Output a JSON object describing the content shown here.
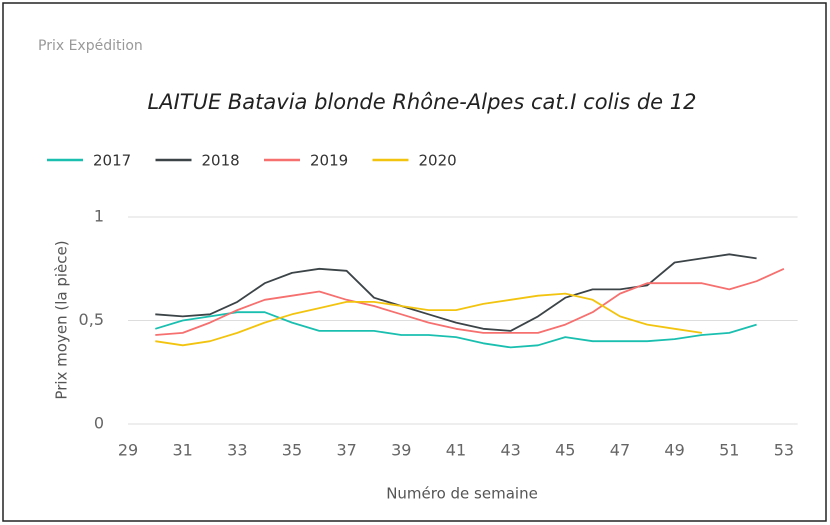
{
  "card_title": "Prix Expédition",
  "chart_data": {
    "type": "line",
    "title": "LAITUE Batavia blonde Rhône-Alpes cat.I colis de 12",
    "x_label": "Numéro de semaine",
    "y_label": "Prix moyen  (la pièce)",
    "x": [
      30,
      31,
      32,
      33,
      34,
      35,
      36,
      37,
      38,
      39,
      40,
      41,
      42,
      43,
      44,
      45,
      46,
      47,
      48,
      49,
      50,
      51,
      52,
      53
    ],
    "series": [
      {
        "name": "2017",
        "color": "#1abfb0",
        "values": [
          0.46,
          0.5,
          0.52,
          0.54,
          0.54,
          0.49,
          0.45,
          0.45,
          0.45,
          0.43,
          0.43,
          0.42,
          0.39,
          0.37,
          0.38,
          0.42,
          0.4,
          0.4,
          0.4,
          0.41,
          0.43,
          0.44,
          0.48,
          null
        ]
      },
      {
        "name": "2018",
        "color": "#3c4448",
        "values": [
          0.53,
          0.52,
          0.53,
          0.59,
          0.68,
          0.73,
          0.75,
          0.74,
          0.61,
          0.57,
          0.53,
          0.49,
          0.46,
          0.45,
          0.52,
          0.61,
          0.65,
          0.65,
          0.67,
          0.78,
          0.8,
          0.82,
          0.8,
          null
        ]
      },
      {
        "name": "2019",
        "color": "#f5706f",
        "values": [
          0.43,
          0.44,
          0.49,
          0.55,
          0.6,
          0.62,
          0.64,
          0.6,
          0.57,
          0.53,
          0.49,
          0.46,
          0.44,
          0.44,
          0.44,
          0.48,
          0.54,
          0.63,
          0.68,
          0.68,
          0.68,
          0.65,
          0.69,
          0.75
        ]
      },
      {
        "name": "2020",
        "color": "#f2c40f",
        "values": [
          0.4,
          0.38,
          0.4,
          0.44,
          0.49,
          0.53,
          0.56,
          0.59,
          0.59,
          0.57,
          0.55,
          0.55,
          0.58,
          0.6,
          0.62,
          0.63,
          0.6,
          0.52,
          0.48,
          0.46,
          0.44,
          null,
          null,
          null
        ]
      }
    ],
    "xlim": [
      29,
      53.5
    ],
    "xticks": [
      29,
      31,
      33,
      35,
      37,
      39,
      41,
      43,
      45,
      47,
      49,
      51,
      53
    ],
    "ylim": [
      0,
      1
    ],
    "yticks": [
      0,
      {
        "value": 0.5,
        "label": "0,5"
      },
      1
    ],
    "grid": true,
    "legend": "top-left"
  }
}
